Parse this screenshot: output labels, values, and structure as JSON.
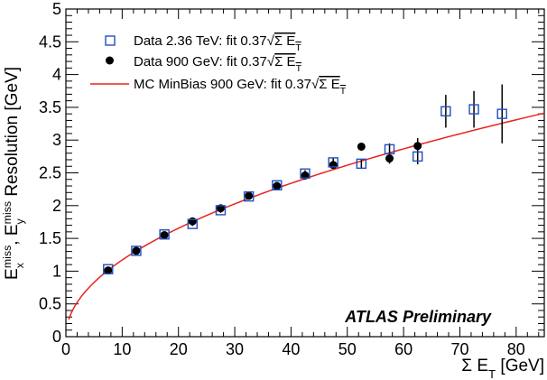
{
  "chart_data": {
    "type": "scatter",
    "xlabel": "Σ E_T  [GeV]",
    "ylabel": "E_x^miss, E_y^miss Resolution [GeV]",
    "xlim": [
      0,
      85
    ],
    "ylim": [
      0,
      5
    ],
    "x_ticks": [
      0,
      10,
      20,
      30,
      40,
      50,
      60,
      70,
      80
    ],
    "y_ticks": [
      0,
      0.5,
      1,
      1.5,
      2,
      2.5,
      3,
      3.5,
      4,
      4.5,
      5
    ],
    "grid": false,
    "legend_position": "top-left",
    "annotation": "ATLAS Preliminary",
    "series": [
      {
        "name": "Data 2.36 TeV: fit 0.37√Σ E_T",
        "marker": "open-square",
        "color": "#1f4fbf",
        "x": [
          7.5,
          12.5,
          17.5,
          22.5,
          27.5,
          32.5,
          37.5,
          42.5,
          47.5,
          52.5,
          57.5,
          62.5,
          67.5,
          72.5,
          77.5
        ],
        "y": [
          1.03,
          1.31,
          1.56,
          1.72,
          1.93,
          2.14,
          2.31,
          2.49,
          2.66,
          2.64,
          2.86,
          2.75,
          3.44,
          3.47,
          3.4
        ],
        "yerr": [
          0.02,
          0.03,
          0.03,
          0.03,
          0.04,
          0.04,
          0.04,
          0.05,
          0.06,
          0.07,
          0.09,
          0.12,
          0.25,
          0.28,
          0.45
        ]
      },
      {
        "name": "Data 900 GeV: fit 0.37√Σ E_T",
        "marker": "filled-circle",
        "color": "#000000",
        "x": [
          7.5,
          12.5,
          17.5,
          22.5,
          27.5,
          32.5,
          37.5,
          42.5,
          47.5,
          52.5,
          57.5,
          62.5
        ],
        "y": [
          1.01,
          1.31,
          1.55,
          1.76,
          1.96,
          2.15,
          2.3,
          2.46,
          2.62,
          2.9,
          2.72,
          2.91
        ],
        "yerr": [
          0.02,
          0.02,
          0.03,
          0.03,
          0.03,
          0.04,
          0.04,
          0.05,
          0.05,
          0.06,
          0.08,
          0.12
        ]
      },
      {
        "name": "MC MinBias 900 GeV: fit 0.37√Σ E_T",
        "line": "solid",
        "color": "#e8231f",
        "function": "0.37*sqrt(x)",
        "x_range": [
          0.5,
          85
        ]
      }
    ]
  },
  "colors": {
    "frame": "#000000",
    "background": "#ffffff"
  }
}
